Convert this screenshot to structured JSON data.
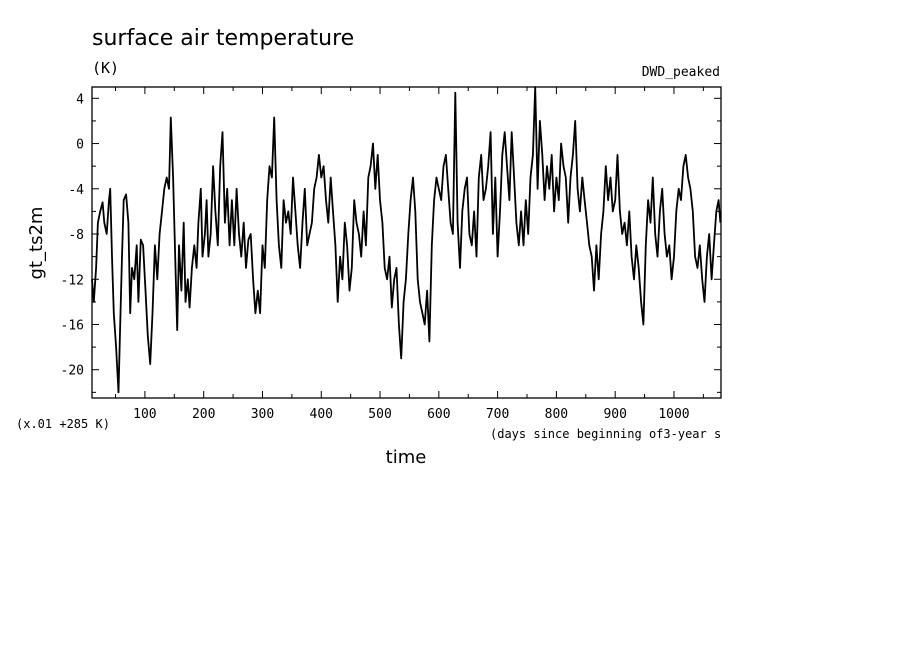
{
  "chart_data": {
    "type": "line",
    "title": "surface air temperature",
    "units": "(K)",
    "run_label": "DWD_peaked",
    "ylabel": "gt_ts2m",
    "xlabel": "time",
    "xlabel_note": "(days since beginning of3-year s",
    "scale_note": "(x.01 +285 K)",
    "xlim": [
      10,
      1080
    ],
    "ylim": [
      -22.5,
      5
    ],
    "x_ticks": [
      100,
      200,
      300,
      400,
      500,
      600,
      700,
      800,
      900,
      1000
    ],
    "y_ticks": [
      4,
      0,
      -4,
      -8,
      -12,
      -16,
      -20
    ],
    "grid": false,
    "series": [
      {
        "color": "#000000",
        "points": [
          [
            10,
            -12
          ],
          [
            13,
            -14
          ],
          [
            17,
            -11
          ],
          [
            20,
            -7
          ],
          [
            24,
            -6
          ],
          [
            28,
            -5.2
          ],
          [
            31,
            -7
          ],
          [
            35,
            -8
          ],
          [
            39,
            -5
          ],
          [
            41,
            -4
          ],
          [
            44,
            -10
          ],
          [
            47,
            -15
          ],
          [
            51,
            -18
          ],
          [
            55,
            -22
          ],
          [
            58,
            -16
          ],
          [
            61,
            -10
          ],
          [
            64,
            -5
          ],
          [
            68,
            -4.5
          ],
          [
            72,
            -7
          ],
          [
            75,
            -15
          ],
          [
            78,
            -11
          ],
          [
            82,
            -12
          ],
          [
            86,
            -9
          ],
          [
            89,
            -14
          ],
          [
            93,
            -8.5
          ],
          [
            97,
            -9
          ],
          [
            101,
            -13
          ],
          [
            105,
            -17
          ],
          [
            109,
            -19.5
          ],
          [
            113,
            -15
          ],
          [
            117,
            -9
          ],
          [
            121,
            -12
          ],
          [
            125,
            -8
          ],
          [
            129,
            -6
          ],
          [
            133,
            -4
          ],
          [
            137,
            -3
          ],
          [
            141,
            -4
          ],
          [
            144,
            2.3
          ],
          [
            148,
            -3
          ],
          [
            152,
            -11
          ],
          [
            155,
            -16.5
          ],
          [
            158,
            -9
          ],
          [
            162,
            -13
          ],
          [
            166,
            -7
          ],
          [
            169,
            -14
          ],
          [
            173,
            -12
          ],
          [
            176,
            -14.5
          ],
          [
            180,
            -11
          ],
          [
            184,
            -9
          ],
          [
            188,
            -11
          ],
          [
            191,
            -7
          ],
          [
            195,
            -4
          ],
          [
            198,
            -10
          ],
          [
            202,
            -8
          ],
          [
            205,
            -5
          ],
          [
            208,
            -10
          ],
          [
            212,
            -8
          ],
          [
            216,
            -2
          ],
          [
            220,
            -6
          ],
          [
            224,
            -9
          ],
          [
            228,
            -2
          ],
          [
            232,
            1
          ],
          [
            236,
            -7
          ],
          [
            240,
            -4
          ],
          [
            244,
            -9
          ],
          [
            248,
            -5
          ],
          [
            252,
            -9
          ],
          [
            256,
            -4
          ],
          [
            260,
            -8
          ],
          [
            264,
            -10
          ],
          [
            268,
            -7
          ],
          [
            272,
            -11
          ],
          [
            276,
            -8.5
          ],
          [
            280,
            -8
          ],
          [
            284,
            -12
          ],
          [
            288,
            -15
          ],
          [
            292,
            -13
          ],
          [
            296,
            -15
          ],
          [
            300,
            -9
          ],
          [
            304,
            -11
          ],
          [
            308,
            -5
          ],
          [
            312,
            -2
          ],
          [
            316,
            -3
          ],
          [
            320,
            2.3
          ],
          [
            324,
            -5
          ],
          [
            328,
            -9
          ],
          [
            332,
            -11
          ],
          [
            336,
            -5
          ],
          [
            340,
            -7
          ],
          [
            344,
            -6
          ],
          [
            348,
            -8
          ],
          [
            352,
            -3
          ],
          [
            356,
            -6
          ],
          [
            360,
            -9
          ],
          [
            364,
            -11
          ],
          [
            368,
            -7
          ],
          [
            372,
            -4
          ],
          [
            376,
            -9
          ],
          [
            380,
            -8
          ],
          [
            384,
            -7
          ],
          [
            388,
            -4
          ],
          [
            392,
            -3
          ],
          [
            396,
            -1
          ],
          [
            400,
            -3
          ],
          [
            404,
            -2
          ],
          [
            408,
            -5
          ],
          [
            412,
            -7
          ],
          [
            416,
            -3
          ],
          [
            420,
            -6
          ],
          [
            424,
            -9
          ],
          [
            428,
            -14
          ],
          [
            432,
            -10
          ],
          [
            436,
            -12
          ],
          [
            440,
            -7
          ],
          [
            444,
            -9
          ],
          [
            448,
            -13
          ],
          [
            452,
            -11
          ],
          [
            456,
            -5
          ],
          [
            460,
            -7
          ],
          [
            464,
            -8
          ],
          [
            468,
            -10
          ],
          [
            472,
            -6
          ],
          [
            476,
            -9
          ],
          [
            480,
            -3
          ],
          [
            484,
            -2
          ],
          [
            488,
            0
          ],
          [
            492,
            -4
          ],
          [
            496,
            -1
          ],
          [
            500,
            -5
          ],
          [
            504,
            -7
          ],
          [
            508,
            -11
          ],
          [
            512,
            -12
          ],
          [
            516,
            -10
          ],
          [
            520,
            -14.5
          ],
          [
            524,
            -12
          ],
          [
            528,
            -11
          ],
          [
            532,
            -16
          ],
          [
            536,
            -19
          ],
          [
            540,
            -14
          ],
          [
            544,
            -12
          ],
          [
            548,
            -8
          ],
          [
            552,
            -5
          ],
          [
            556,
            -3
          ],
          [
            560,
            -6
          ],
          [
            564,
            -12
          ],
          [
            568,
            -14
          ],
          [
            572,
            -15
          ],
          [
            576,
            -16
          ],
          [
            580,
            -13
          ],
          [
            584,
            -17.5
          ],
          [
            588,
            -9
          ],
          [
            592,
            -5
          ],
          [
            596,
            -3
          ],
          [
            600,
            -4
          ],
          [
            604,
            -5
          ],
          [
            608,
            -2
          ],
          [
            612,
            -1
          ],
          [
            616,
            -4
          ],
          [
            620,
            -7
          ],
          [
            624,
            -8
          ],
          [
            628,
            4.5
          ],
          [
            632,
            -7
          ],
          [
            636,
            -11
          ],
          [
            640,
            -6
          ],
          [
            644,
            -4
          ],
          [
            648,
            -3
          ],
          [
            652,
            -8
          ],
          [
            656,
            -9
          ],
          [
            660,
            -6
          ],
          [
            664,
            -10
          ],
          [
            668,
            -3
          ],
          [
            672,
            -1
          ],
          [
            676,
            -5
          ],
          [
            680,
            -4
          ],
          [
            684,
            -2
          ],
          [
            688,
            1
          ],
          [
            692,
            -8
          ],
          [
            696,
            -3
          ],
          [
            700,
            -10
          ],
          [
            704,
            -6
          ],
          [
            708,
            -1
          ],
          [
            712,
            1
          ],
          [
            716,
            -2
          ],
          [
            720,
            -5
          ],
          [
            724,
            1
          ],
          [
            728,
            -3
          ],
          [
            732,
            -7
          ],
          [
            736,
            -9
          ],
          [
            740,
            -6
          ],
          [
            744,
            -9
          ],
          [
            748,
            -5
          ],
          [
            752,
            -8
          ],
          [
            756,
            -3
          ],
          [
            760,
            -1
          ],
          [
            764,
            5
          ],
          [
            768,
            -4
          ],
          [
            772,
            2
          ],
          [
            776,
            -1
          ],
          [
            780,
            -5
          ],
          [
            784,
            -2
          ],
          [
            788,
            -4
          ],
          [
            792,
            -1
          ],
          [
            796,
            -6
          ],
          [
            800,
            -3
          ],
          [
            804,
            -5
          ],
          [
            808,
            0
          ],
          [
            812,
            -2
          ],
          [
            816,
            -3
          ],
          [
            820,
            -7
          ],
          [
            824,
            -3
          ],
          [
            828,
            -1
          ],
          [
            832,
            2
          ],
          [
            836,
            -4
          ],
          [
            840,
            -6
          ],
          [
            844,
            -3
          ],
          [
            848,
            -5
          ],
          [
            852,
            -7
          ],
          [
            856,
            -9
          ],
          [
            860,
            -10
          ],
          [
            864,
            -13
          ],
          [
            868,
            -9
          ],
          [
            872,
            -12
          ],
          [
            876,
            -8
          ],
          [
            880,
            -6
          ],
          [
            884,
            -2
          ],
          [
            888,
            -5
          ],
          [
            892,
            -3
          ],
          [
            896,
            -6
          ],
          [
            900,
            -5
          ],
          [
            904,
            -1
          ],
          [
            908,
            -6
          ],
          [
            912,
            -8
          ],
          [
            916,
            -7
          ],
          [
            920,
            -9
          ],
          [
            924,
            -6
          ],
          [
            928,
            -10
          ],
          [
            932,
            -12
          ],
          [
            936,
            -9
          ],
          [
            940,
            -11
          ],
          [
            944,
            -14
          ],
          [
            948,
            -16
          ],
          [
            952,
            -9
          ],
          [
            956,
            -5
          ],
          [
            960,
            -7
          ],
          [
            964,
            -3
          ],
          [
            968,
            -8
          ],
          [
            972,
            -10
          ],
          [
            976,
            -6
          ],
          [
            980,
            -4
          ],
          [
            984,
            -8
          ],
          [
            988,
            -10
          ],
          [
            992,
            -9
          ],
          [
            996,
            -12
          ],
          [
            1000,
            -10
          ],
          [
            1004,
            -6
          ],
          [
            1008,
            -4
          ],
          [
            1012,
            -5
          ],
          [
            1016,
            -2
          ],
          [
            1020,
            -1
          ],
          [
            1024,
            -3
          ],
          [
            1028,
            -4
          ],
          [
            1032,
            -6
          ],
          [
            1036,
            -10
          ],
          [
            1040,
            -11
          ],
          [
            1044,
            -9
          ],
          [
            1048,
            -12
          ],
          [
            1052,
            -14
          ],
          [
            1056,
            -10
          ],
          [
            1060,
            -8
          ],
          [
            1064,
            -12
          ],
          [
            1068,
            -9
          ],
          [
            1072,
            -6
          ],
          [
            1076,
            -5
          ],
          [
            1079,
            -7
          ]
        ]
      }
    ]
  }
}
